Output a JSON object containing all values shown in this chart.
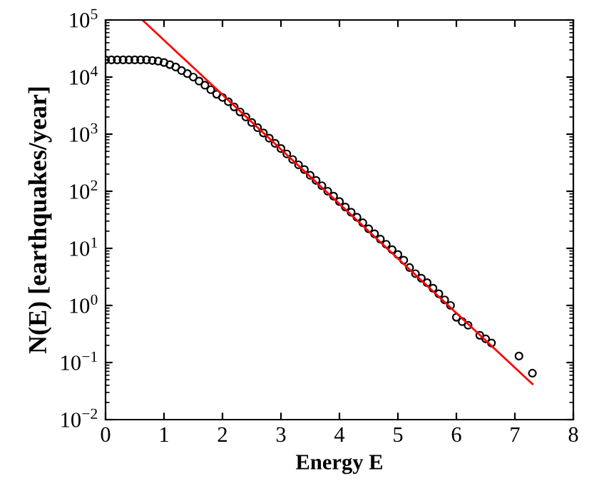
{
  "chart_data": {
    "type": "scatter",
    "xlabel": "Energy E",
    "ylabel": "N(E) [earthquakes/year]",
    "log": "y",
    "grid": false,
    "legend": false,
    "xlim": [
      0,
      8
    ],
    "xticks": [
      0,
      1,
      2,
      3,
      4,
      5,
      6,
      7,
      8
    ],
    "ylim": [
      0.01,
      100000
    ],
    "yticks": [
      {
        "value": 0.01,
        "label": "10$^{−2}$"
      },
      {
        "value": 0.1,
        "label": "10$^{−1}$"
      },
      {
        "value": 1,
        "label": "10$^{0}$"
      },
      {
        "value": 10,
        "label": "10$^{1}$"
      },
      {
        "value": 100,
        "label": "10$^{2}$"
      },
      {
        "value": 1000,
        "label": "10$^{3}$"
      },
      {
        "value": 10000,
        "label": "10$^{4}$"
      },
      {
        "value": 100000,
        "label": "10$^{5}$"
      }
    ],
    "series": [
      {
        "marker": "circle",
        "color": "#000000",
        "x": [
          0.0,
          0.1,
          0.2,
          0.3,
          0.4,
          0.5,
          0.6,
          0.7,
          0.8,
          0.9,
          1.0,
          1.1,
          1.2,
          1.3,
          1.4,
          1.5,
          1.6,
          1.7,
          1.8,
          1.9,
          2.0,
          2.1,
          2.2,
          2.3,
          2.4,
          2.5,
          2.6,
          2.7,
          2.8,
          2.9,
          3.0,
          3.1,
          3.2,
          3.3,
          3.4,
          3.5,
          3.6,
          3.7,
          3.8,
          3.9,
          4.0,
          4.1,
          4.2,
          4.3,
          4.4,
          4.5,
          4.6,
          4.7,
          4.8,
          4.9,
          5.0,
          5.1,
          5.2,
          5.3,
          5.4,
          5.5,
          5.6,
          5.7,
          5.8,
          5.9,
          6.0,
          6.1,
          6.2,
          6.4,
          6.5,
          6.6,
          7.07,
          7.3
        ],
        "values": [
          20000,
          20000,
          20000,
          20000,
          20000,
          20000,
          20000,
          20000,
          19500,
          19000,
          18000,
          16500,
          15000,
          13000,
          11500,
          10000,
          8500,
          7200,
          6000,
          5000,
          4400,
          3700,
          3000,
          2450,
          2000,
          1600,
          1300,
          1050,
          850,
          690,
          560,
          450,
          360,
          290,
          240,
          190,
          155,
          125,
          100,
          82,
          66,
          53,
          43,
          35,
          28,
          22,
          18,
          14.5,
          11.8,
          9.5,
          7.8,
          6.2,
          4.6,
          3.6,
          3.0,
          2.5,
          2.0,
          1.6,
          1.25,
          1.0,
          0.62,
          0.52,
          0.45,
          0.3,
          0.26,
          0.22,
          0.13,
          0.065
        ]
      },
      {
        "type": "line",
        "marker": "none",
        "color": "#ff0000",
        "x": [
          0.63,
          7.3
        ],
        "values": [
          100000,
          0.042
        ]
      }
    ]
  }
}
